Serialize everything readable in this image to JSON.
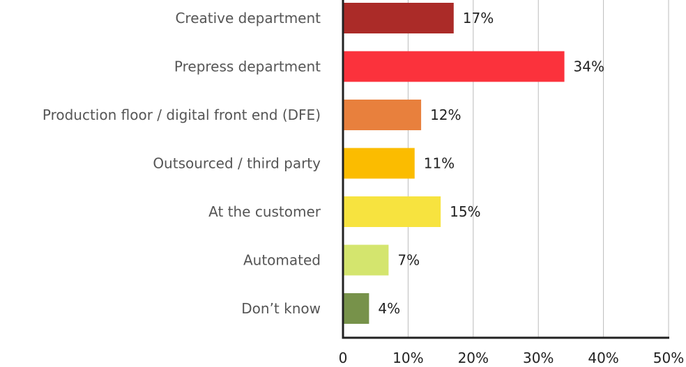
{
  "chart_data": {
    "type": "bar",
    "orientation": "horizontal",
    "title": "",
    "xlabel": "",
    "ylabel": "",
    "categories": [
      "Creative department",
      "Prepress department",
      "Production floor / digital front end (DFE)",
      "Outsourced / third party",
      "At the customer",
      "Automated",
      "Don’t know"
    ],
    "values": [
      17,
      34,
      12,
      11,
      15,
      7,
      4
    ],
    "value_labels": [
      "17%",
      "34%",
      "12%",
      "11%",
      "15%",
      "7%",
      "4%"
    ],
    "bar_colors": [
      "#ab2b28",
      "#fb323c",
      "#e8803d",
      "#fbbc00",
      "#f7e33f",
      "#d4e56e",
      "#77924a"
    ],
    "xlim": [
      0,
      50
    ],
    "x_ticks": [
      0,
      10,
      20,
      30,
      40,
      50
    ],
    "x_tick_labels": [
      "0",
      "10%",
      "20%",
      "30%",
      "40%",
      "50%"
    ],
    "grid": true,
    "grid_color": "#bbbbbb",
    "axis_color": "#222222",
    "legend": "none"
  }
}
